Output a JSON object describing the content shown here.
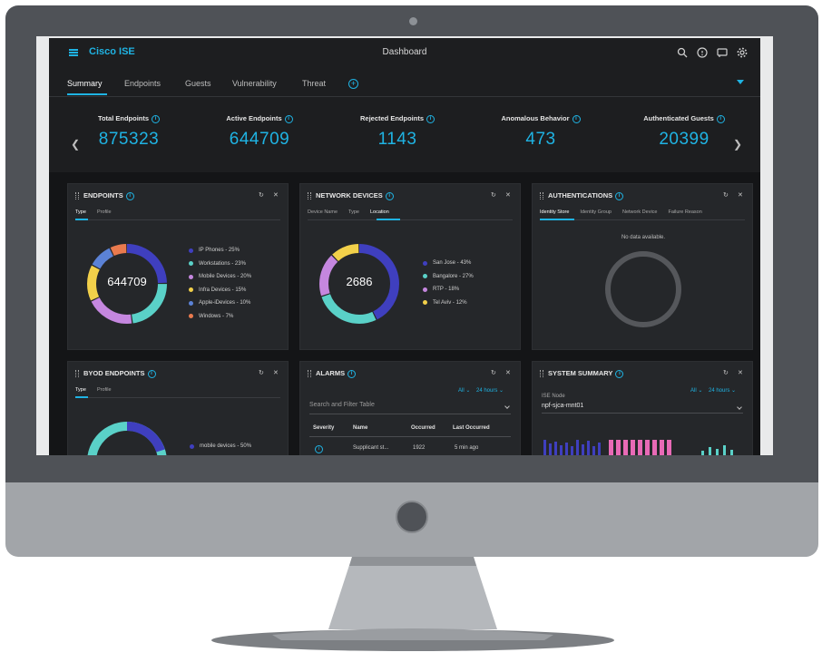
{
  "app": {
    "brand": "Cisco ISE",
    "page_title": "Dashboard"
  },
  "top_icons": [
    "search-icon",
    "help-icon",
    "notifications-icon",
    "settings-icon"
  ],
  "tabs": [
    {
      "label": "Summary",
      "active": true
    },
    {
      "label": "Endpoints"
    },
    {
      "label": "Guests"
    },
    {
      "label": "Vulnerability"
    },
    {
      "label": "Threat"
    }
  ],
  "kpis": [
    {
      "label": "Total Endpoints",
      "value": "875323"
    },
    {
      "label": "Active Endpoints",
      "value": "644709"
    },
    {
      "label": "Rejected Endpoints",
      "value": "1143"
    },
    {
      "label": "Anomalous Behavior",
      "value": "473"
    },
    {
      "label": "Authenticated Guests",
      "value": "20399"
    }
  ],
  "panels": {
    "endpoints": {
      "title": "ENDPOINTS",
      "subtabs": [
        "Type",
        "Profile"
      ],
      "center": "644709",
      "legend": [
        {
          "label": "IP Phones - 25%",
          "value": 25,
          "color": "#3f3fbf"
        },
        {
          "label": "Workstations - 23%",
          "value": 23,
          "color": "#5ad1c8"
        },
        {
          "label": "Mobile Devices - 20%",
          "value": 20,
          "color": "#c587df"
        },
        {
          "label": "Infra Devices - 15%",
          "value": 15,
          "color": "#f2d04a"
        },
        {
          "label": "Apple-iDevices - 10%",
          "value": 10,
          "color": "#5b82d6"
        },
        {
          "label": "Windows - 7%",
          "value": 7,
          "color": "#e97a4e"
        }
      ]
    },
    "network_devices": {
      "title": "NETWORK DEVICES",
      "subtabs": [
        "Device Name",
        "Type",
        "Location"
      ],
      "center": "2686",
      "legend": [
        {
          "label": "San Jose - 43%",
          "value": 43,
          "color": "#3f3fbf"
        },
        {
          "label": "Bangalore - 27%",
          "value": 27,
          "color": "#5ad1c8"
        },
        {
          "label": "RTP - 18%",
          "value": 18,
          "color": "#c587df"
        },
        {
          "label": "Tel Aviv - 12%",
          "value": 12,
          "color": "#f2d04a"
        }
      ]
    },
    "authentications": {
      "title": "AUTHENTICATIONS",
      "subtabs": [
        "Identity Store",
        "Identity Group",
        "Network Device",
        "Failure Reason"
      ],
      "no_data": "No data available."
    },
    "byod_endpoints": {
      "title": "BYOD ENDPOINTS",
      "subtabs": [
        "Type",
        "Profile"
      ],
      "legend": [
        {
          "label": "mobile devices - 50%",
          "value": 50,
          "color": "#3f3fbf"
        }
      ]
    },
    "alarms": {
      "title": "ALARMS",
      "filter_all": "All",
      "filter_time": "24 hours",
      "search_placeholder": "Search and Filter Table",
      "columns": [
        "Severity",
        "Name",
        "Occurred",
        "Last Occurred"
      ],
      "row": {
        "name": "Supplicant st...",
        "occurred": "1922",
        "last_occurred": "5 min ago"
      }
    },
    "system_summary": {
      "title": "SYSTEM SUMMARY",
      "filter_all": "All",
      "filter_time": "24 hours",
      "node_label": "ISE Node",
      "node_value": "npf-sjca-mnt01"
    }
  },
  "colors": {
    "accent": "#1fb3e3",
    "background": "#1d1e20",
    "panel": "#25272a"
  }
}
